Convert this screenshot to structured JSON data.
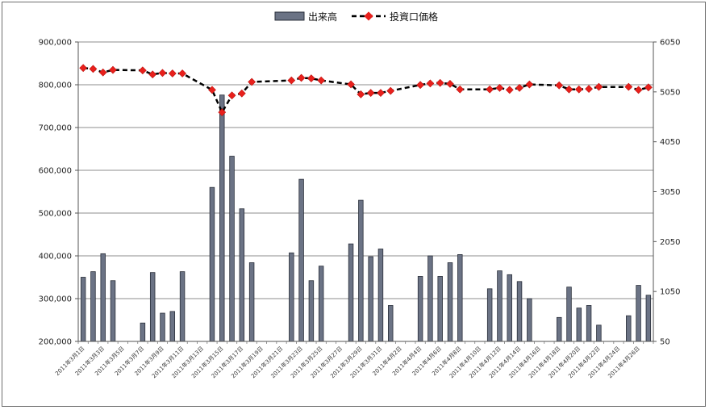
{
  "chart_data": {
    "type": "bar+line",
    "title": "",
    "legend": [
      {
        "name": "出来高",
        "kind": "bar",
        "color": "#6b7385"
      },
      {
        "name": "投資口価格",
        "kind": "line",
        "color": "#e8201c",
        "line_color": "#000000"
      }
    ],
    "legend_position": "top-center",
    "grid": true,
    "y_left": {
      "min": 200000,
      "max": 900000,
      "ticks": [
        "200,000",
        "300,000",
        "400,000",
        "500,000",
        "600,000",
        "700,000",
        "800,000",
        "900,000"
      ]
    },
    "y_right": {
      "min": 50,
      "max": 6050,
      "ticks": [
        "50",
        "1050",
        "2050",
        "3050",
        "4050",
        "5050",
        "6050"
      ]
    },
    "x_ticks": [
      "2011年3月1日",
      "2011年3月3日",
      "2011年3月5日",
      "2011年3月7日",
      "2011年3月9日",
      "2011年3月11日",
      "2011年3月13日",
      "2011年3月15日",
      "2011年3月17日",
      "2011年3月19日",
      "2011年3月21日",
      "2011年3月23日",
      "2011年3月25日",
      "2011年3月27日",
      "2011年3月29日",
      "2011年3月31日",
      "2011年4月2日",
      "2011年4月4日",
      "2011年4月6日",
      "2011年4月8日",
      "2011年4月10日",
      "2011年4月12日",
      "2011年4月14日",
      "2011年4月16日",
      "2011年4月18日",
      "2011年4月20日",
      "2011年4月22日",
      "2011年4月24日",
      "2011年4月26日"
    ],
    "x_start": "2011-03-01",
    "x_end": "2011-04-27",
    "bars": [
      {
        "date": "2011-03-01",
        "value": 350000
      },
      {
        "date": "2011-03-02",
        "value": 363000
      },
      {
        "date": "2011-03-03",
        "value": 405000
      },
      {
        "date": "2011-03-04",
        "value": 342000
      },
      {
        "date": "2011-03-07",
        "value": 243000
      },
      {
        "date": "2011-03-08",
        "value": 361000
      },
      {
        "date": "2011-03-09",
        "value": 266000
      },
      {
        "date": "2011-03-10",
        "value": 270000
      },
      {
        "date": "2011-03-11",
        "value": 363000
      },
      {
        "date": "2011-03-14",
        "value": 560000
      },
      {
        "date": "2011-03-15",
        "value": 776000
      },
      {
        "date": "2011-03-16",
        "value": 633000
      },
      {
        "date": "2011-03-17",
        "value": 510000
      },
      {
        "date": "2011-03-18",
        "value": 384000
      },
      {
        "date": "2011-03-22",
        "value": 407000
      },
      {
        "date": "2011-03-23",
        "value": 579000
      },
      {
        "date": "2011-03-24",
        "value": 342000
      },
      {
        "date": "2011-03-25",
        "value": 376000
      },
      {
        "date": "2011-03-28",
        "value": 428000
      },
      {
        "date": "2011-03-29",
        "value": 530000
      },
      {
        "date": "2011-03-30",
        "value": 398000
      },
      {
        "date": "2011-03-31",
        "value": 416000
      },
      {
        "date": "2011-04-01",
        "value": 284000
      },
      {
        "date": "2011-04-04",
        "value": 352000
      },
      {
        "date": "2011-04-05",
        "value": 400000
      },
      {
        "date": "2011-04-06",
        "value": 352000
      },
      {
        "date": "2011-04-07",
        "value": 384000
      },
      {
        "date": "2011-04-08",
        "value": 403000
      },
      {
        "date": "2011-04-11",
        "value": 323000
      },
      {
        "date": "2011-04-12",
        "value": 365000
      },
      {
        "date": "2011-04-13",
        "value": 356000
      },
      {
        "date": "2011-04-14",
        "value": 340000
      },
      {
        "date": "2011-04-15",
        "value": 300000
      },
      {
        "date": "2011-04-18",
        "value": 256000
      },
      {
        "date": "2011-04-19",
        "value": 327000
      },
      {
        "date": "2011-04-20",
        "value": 278000
      },
      {
        "date": "2011-04-21",
        "value": 284000
      },
      {
        "date": "2011-04-22",
        "value": 238000
      },
      {
        "date": "2011-04-25",
        "value": 260000
      },
      {
        "date": "2011-04-26",
        "value": 331000
      },
      {
        "date": "2011-04-27",
        "value": 308000
      }
    ],
    "prices": [
      {
        "date": "2011-03-01",
        "value": 5530
      },
      {
        "date": "2011-03-02",
        "value": 5510
      },
      {
        "date": "2011-03-03",
        "value": 5440
      },
      {
        "date": "2011-03-04",
        "value": 5490
      },
      {
        "date": "2011-03-07",
        "value": 5480
      },
      {
        "date": "2011-03-08",
        "value": 5400
      },
      {
        "date": "2011-03-09",
        "value": 5430
      },
      {
        "date": "2011-03-10",
        "value": 5420
      },
      {
        "date": "2011-03-11",
        "value": 5420
      },
      {
        "date": "2011-03-14",
        "value": 5090
      },
      {
        "date": "2011-03-15",
        "value": 4640
      },
      {
        "date": "2011-03-16",
        "value": 4980
      },
      {
        "date": "2011-03-17",
        "value": 5020
      },
      {
        "date": "2011-03-18",
        "value": 5250
      },
      {
        "date": "2011-03-22",
        "value": 5280
      },
      {
        "date": "2011-03-23",
        "value": 5330
      },
      {
        "date": "2011-03-24",
        "value": 5320
      },
      {
        "date": "2011-03-25",
        "value": 5280
      },
      {
        "date": "2011-03-28",
        "value": 5200
      },
      {
        "date": "2011-03-29",
        "value": 5000
      },
      {
        "date": "2011-03-30",
        "value": 5030
      },
      {
        "date": "2011-03-31",
        "value": 5030
      },
      {
        "date": "2011-04-01",
        "value": 5070
      },
      {
        "date": "2011-04-04",
        "value": 5190
      },
      {
        "date": "2011-04-05",
        "value": 5220
      },
      {
        "date": "2011-04-06",
        "value": 5230
      },
      {
        "date": "2011-04-07",
        "value": 5210
      },
      {
        "date": "2011-04-08",
        "value": 5100
      },
      {
        "date": "2011-04-11",
        "value": 5100
      },
      {
        "date": "2011-04-12",
        "value": 5130
      },
      {
        "date": "2011-04-13",
        "value": 5090
      },
      {
        "date": "2011-04-14",
        "value": 5130
      },
      {
        "date": "2011-04-15",
        "value": 5200
      },
      {
        "date": "2011-04-18",
        "value": 5180
      },
      {
        "date": "2011-04-19",
        "value": 5100
      },
      {
        "date": "2011-04-20",
        "value": 5100
      },
      {
        "date": "2011-04-21",
        "value": 5110
      },
      {
        "date": "2011-04-22",
        "value": 5150
      },
      {
        "date": "2011-04-25",
        "value": 5150
      },
      {
        "date": "2011-04-26",
        "value": 5090
      },
      {
        "date": "2011-04-27",
        "value": 5140
      }
    ]
  }
}
